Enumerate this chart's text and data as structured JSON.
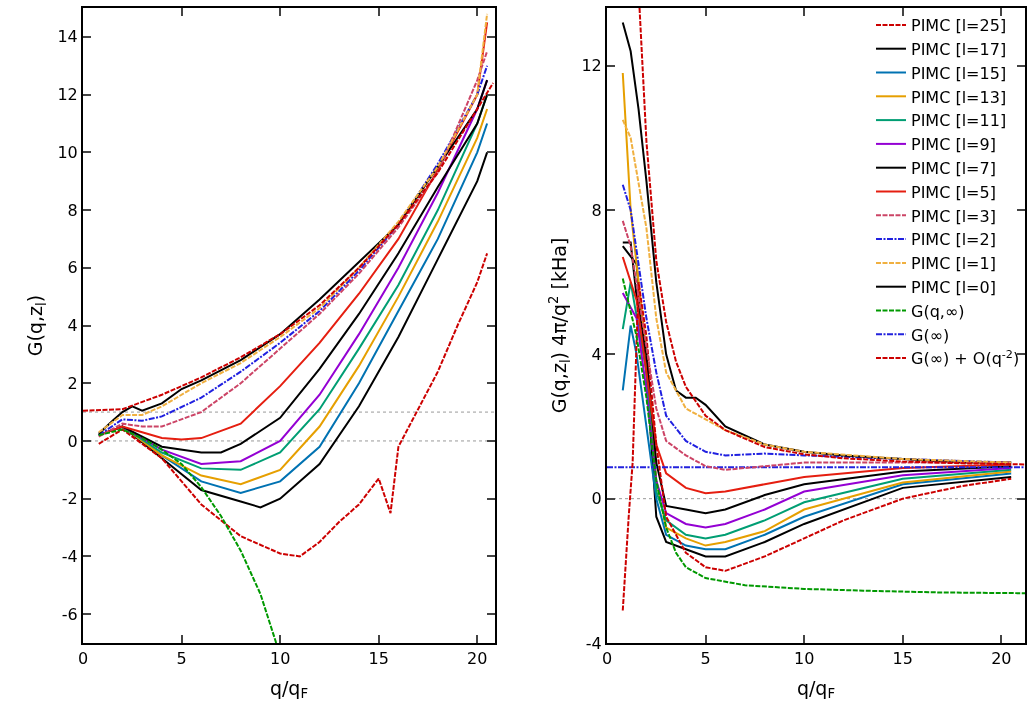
{
  "chart_data": [
    {
      "type": "line",
      "xlabel": "q/q$_{F}$",
      "ylabel": "G(q,z$_{l}$)",
      "xlim": [
        0,
        20.9
      ],
      "ylim": [
        -7,
        15
      ],
      "xticks": [
        0,
        5,
        10,
        15,
        20
      ],
      "yticks": [
        -6,
        -4,
        -2,
        0,
        2,
        4,
        6,
        8,
        10,
        12,
        14
      ],
      "grid": false,
      "legend": false,
      "ref_lines": [
        {
          "axis": "y",
          "value": 0,
          "color": "#999999",
          "line_style": "dotted"
        },
        {
          "axis": "y",
          "value": 1,
          "color": "#999999",
          "line_style": "dotted"
        }
      ],
      "series": [
        {
          "color": "#cc0000",
          "line_style": "dashed",
          "x": [
            0.8,
            2,
            4,
            6,
            8,
            10,
            11,
            12,
            13,
            14,
            15,
            15.6,
            16,
            17,
            18,
            19,
            20,
            20.5
          ],
          "values": [
            -0.1,
            0.4,
            -0.6,
            -2.2,
            -3.3,
            -3.9,
            -4.0,
            -3.5,
            -2.8,
            -2.2,
            -1.3,
            -2.5,
            -0.2,
            1.1,
            2.4,
            4.0,
            5.5,
            6.5
          ]
        },
        {
          "color": "#000000",
          "line_style": "solid",
          "x": [
            0.8,
            2,
            4,
            6,
            8,
            9,
            10,
            12,
            14,
            16,
            18,
            20,
            20.5
          ],
          "values": [
            0.2,
            0.5,
            -0.6,
            -1.7,
            -2.1,
            -2.3,
            -2.0,
            -0.8,
            1.2,
            3.6,
            6.3,
            9.0,
            10.0
          ]
        },
        {
          "color": "#0072b2",
          "line_style": "solid",
          "x": [
            0.8,
            2,
            4,
            6,
            8,
            10,
            12,
            14,
            16,
            18,
            20,
            20.5
          ],
          "values": [
            0.2,
            0.5,
            -0.5,
            -1.4,
            -1.8,
            -1.4,
            -0.2,
            2.0,
            4.5,
            7.0,
            10.0,
            11.0
          ]
        },
        {
          "color": "#e69f00",
          "line_style": "solid",
          "x": [
            0.8,
            2,
            4,
            6,
            8,
            10,
            12,
            14,
            16,
            18,
            20,
            20.5
          ],
          "values": [
            0.2,
            0.5,
            -0.5,
            -1.2,
            -1.5,
            -1.0,
            0.5,
            2.6,
            5.0,
            7.6,
            10.5,
            11.5
          ]
        },
        {
          "color": "#009e73",
          "line_style": "solid",
          "x": [
            0.8,
            2,
            4,
            6,
            8,
            10,
            12,
            14,
            16,
            18,
            20,
            20.5
          ],
          "values": [
            0.2,
            0.5,
            -0.4,
            -0.95,
            -1.0,
            -0.4,
            1.1,
            3.2,
            5.4,
            8.0,
            11.0,
            12.0
          ]
        },
        {
          "color": "#9400d3",
          "line_style": "solid",
          "x": [
            0.8,
            2,
            4,
            6,
            8,
            10,
            12,
            14,
            16,
            18,
            20,
            20.5
          ],
          "values": [
            0.2,
            0.5,
            -0.3,
            -0.8,
            -0.7,
            0.0,
            1.6,
            3.7,
            6.0,
            8.6,
            11.5,
            12.5
          ]
        },
        {
          "color": "#000000",
          "line_style": "solid",
          "x": [
            0.8,
            2,
            4,
            6,
            7,
            8,
            10,
            12,
            14,
            16,
            18,
            20,
            20.5
          ],
          "values": [
            0.2,
            0.5,
            -0.2,
            -0.4,
            -0.4,
            -0.1,
            0.8,
            2.5,
            4.4,
            6.5,
            8.8,
            11.0,
            12.0
          ]
        },
        {
          "color": "#e51e10",
          "line_style": "solid",
          "x": [
            0.8,
            2,
            3,
            4,
            5,
            6,
            8,
            10,
            12,
            14,
            16,
            18,
            20,
            20.5
          ],
          "values": [
            0.2,
            0.5,
            0.3,
            0.1,
            0.05,
            0.1,
            0.6,
            1.9,
            3.4,
            5.1,
            7.0,
            9.4,
            12.0,
            14.5
          ]
        },
        {
          "color": "#cc4466",
          "line_style": "dashed",
          "x": [
            0.8,
            2,
            3,
            4,
            6,
            8,
            10,
            12,
            14,
            16,
            18,
            20,
            20.5
          ],
          "values": [
            0.15,
            0.6,
            0.5,
            0.5,
            1.0,
            2.0,
            3.2,
            4.4,
            5.8,
            7.4,
            9.3,
            12.5,
            13.5
          ]
        },
        {
          "color": "#2020e0",
          "line_style": "dashdot",
          "x": [
            0.8,
            2,
            3,
            4,
            6,
            8,
            10,
            12,
            14,
            16,
            18,
            20,
            20.5
          ],
          "values": [
            0.2,
            0.75,
            0.7,
            0.85,
            1.5,
            2.4,
            3.4,
            4.5,
            5.9,
            7.5,
            9.6,
            12.0,
            13.0
          ]
        },
        {
          "color": "#f0b040",
          "line_style": "dashed",
          "x": [
            0.8,
            2,
            3,
            4,
            6,
            8,
            10,
            12,
            14,
            16,
            18,
            20,
            20.5
          ],
          "values": [
            0.3,
            0.9,
            0.9,
            1.2,
            2.0,
            2.7,
            3.6,
            4.6,
            6.0,
            7.6,
            9.5,
            12.0,
            14.8
          ]
        },
        {
          "color": "#000000",
          "line_style": "solid",
          "x": [
            0.8,
            1.5,
            2,
            2.5,
            3,
            4,
            5,
            6,
            8,
            10,
            12,
            14,
            16,
            18,
            20,
            20.5
          ],
          "values": [
            0.25,
            0.7,
            1.0,
            1.2,
            1.05,
            1.3,
            1.8,
            2.1,
            2.8,
            3.7,
            4.9,
            6.2,
            7.5,
            9.5,
            11.5,
            12.5
          ]
        },
        {
          "color": "#009900",
          "line_style": "dashed",
          "x": [
            0.8,
            2,
            3,
            4,
            5,
            6,
            7,
            8,
            9,
            9.8
          ],
          "values": [
            0.2,
            0.4,
            0.1,
            -0.3,
            -0.8,
            -1.6,
            -2.6,
            -3.8,
            -5.3,
            -7.0
          ]
        },
        {
          "color": "#cc0000",
          "line_style": "dashed",
          "x": [
            0,
            2,
            4,
            6,
            8,
            10,
            12,
            14,
            16,
            18,
            20,
            20.8
          ],
          "values": [
            1.05,
            1.1,
            1.6,
            2.2,
            2.9,
            3.7,
            4.7,
            6.0,
            7.5,
            9.3,
            11.5,
            12.4
          ]
        }
      ]
    },
    {
      "type": "line",
      "xlabel": "q/q$_{F}$",
      "ylabel": "G(q,z$_{l}$) 4π/q$^{2}$ [kHa]",
      "xlim": [
        0,
        21.2
      ],
      "ylim": [
        -4,
        13.6
      ],
      "xticks": [
        0,
        5,
        10,
        15,
        20
      ],
      "yticks": [
        -4,
        0,
        4,
        8,
        12
      ],
      "grid": false,
      "legend": "top right",
      "ref_lines": [
        {
          "axis": "y",
          "value": 0,
          "color": "#999999",
          "line_style": "dotted"
        }
      ],
      "series": [
        {
          "name": "PIMC [l=25]",
          "color": "#cc0000",
          "line_style": "dashed",
          "x": [
            0.8,
            1.1,
            1.3,
            1.6,
            2,
            2.5,
            3,
            4,
            5,
            6,
            8,
            10,
            12,
            15,
            18,
            20.5
          ],
          "values": [
            -3.1,
            -0.5,
            1.0,
            6.0,
            4.5,
            1.5,
            -0.5,
            -1.5,
            -1.9,
            -2.0,
            -1.6,
            -1.1,
            -0.6,
            0.0,
            0.35,
            0.55
          ]
        },
        {
          "name": "PIMC [l=17]",
          "color": "#000000",
          "line_style": "solid",
          "x": [
            0.8,
            1.5,
            2,
            2.5,
            3,
            4,
            5,
            6,
            8,
            10,
            15,
            20.5
          ],
          "values": [
            7.0,
            6.5,
            3.5,
            -0.5,
            -1.2,
            -1.4,
            -1.6,
            -1.6,
            -1.2,
            -0.7,
            0.3,
            0.6
          ]
        },
        {
          "name": "PIMC [l=15]",
          "color": "#0072b2",
          "line_style": "solid",
          "x": [
            0.8,
            1.2,
            1.5,
            2,
            2.5,
            3,
            4,
            5,
            6,
            8,
            10,
            15,
            20.5
          ],
          "values": [
            3.0,
            4.8,
            4.0,
            2.0,
            0,
            -1.0,
            -1.3,
            -1.4,
            -1.4,
            -1.0,
            -0.5,
            0.4,
            0.7
          ]
        },
        {
          "name": "PIMC [l=13]",
          "color": "#e69f00",
          "line_style": "solid",
          "x": [
            0.8,
            1.2,
            2,
            2.5,
            3,
            4,
            5,
            6,
            8,
            10,
            15,
            20.5
          ],
          "values": [
            11.8,
            8.0,
            4.0,
            0.5,
            -0.8,
            -1.1,
            -1.3,
            -1.2,
            -0.9,
            -0.3,
            0.45,
            0.75
          ]
        },
        {
          "name": "PIMC [l=11]",
          "color": "#009e73",
          "line_style": "solid",
          "x": [
            0.8,
            1.2,
            2,
            2.5,
            3,
            4,
            5,
            6,
            8,
            10,
            15,
            20.5
          ],
          "values": [
            4.7,
            6.0,
            3.5,
            0.2,
            -0.6,
            -1.0,
            -1.1,
            -1.0,
            -0.6,
            -0.1,
            0.55,
            0.8
          ]
        },
        {
          "name": "PIMC [l=9]",
          "color": "#9400d3",
          "line_style": "solid",
          "x": [
            0.8,
            1.5,
            2,
            2.5,
            3,
            4,
            5,
            6,
            8,
            10,
            15,
            20.5
          ],
          "values": [
            5.7,
            5.0,
            3.0,
            0.5,
            -0.4,
            -0.7,
            -0.8,
            -0.7,
            -0.3,
            0.2,
            0.65,
            0.85
          ]
        },
        {
          "name": "PIMC [l=7]",
          "color": "#000000",
          "line_style": "solid",
          "x": [
            0.8,
            1.2,
            1.5,
            2,
            2.5,
            3,
            4,
            5,
            6,
            8,
            10,
            15,
            20.5
          ],
          "values": [
            7.1,
            7.1,
            5.6,
            4.0,
            1.0,
            -0.2,
            -0.3,
            -0.4,
            -0.3,
            0.1,
            0.4,
            0.75,
            0.9
          ]
        },
        {
          "name": "PIMC [l=5]",
          "color": "#e51e10",
          "line_style": "solid",
          "x": [
            0.8,
            1.5,
            2,
            2.5,
            3,
            4,
            5,
            6,
            8,
            10,
            15,
            20.5
          ],
          "values": [
            6.7,
            5.5,
            3.5,
            1.5,
            0.7,
            0.3,
            0.15,
            0.2,
            0.4,
            0.6,
            0.85,
            0.95
          ]
        },
        {
          "name": "PIMC [l=3]",
          "color": "#cc4466",
          "line_style": "dashed",
          "x": [
            0.8,
            1.2,
            2,
            2.5,
            3,
            4,
            5,
            6,
            8,
            10,
            15,
            20.5
          ],
          "values": [
            7.7,
            7.0,
            4.2,
            2.5,
            1.6,
            1.2,
            0.9,
            0.8,
            0.9,
            1.0,
            1.0,
            1.0
          ]
        },
        {
          "name": "PIMC [l=2]",
          "color": "#2020e0",
          "line_style": "dashdot",
          "x": [
            0.8,
            1.2,
            2,
            2.5,
            3,
            4,
            5,
            6,
            8,
            10,
            15,
            20.5
          ],
          "values": [
            8.7,
            8.0,
            5.0,
            3.5,
            2.3,
            1.6,
            1.3,
            1.2,
            1.25,
            1.2,
            1.1,
            1.0
          ]
        },
        {
          "name": "PIMC [l=1]",
          "color": "#f0b040",
          "line_style": "dashed",
          "x": [
            0.8,
            1.2,
            2,
            2.5,
            3,
            4,
            5,
            6,
            8,
            10,
            15,
            20.5
          ],
          "values": [
            10.5,
            10.0,
            7.5,
            5.0,
            3.5,
            2.5,
            2.2,
            1.9,
            1.5,
            1.3,
            1.1,
            1.0
          ]
        },
        {
          "name": "PIMC [l=0]",
          "color": "#000000",
          "line_style": "solid",
          "x": [
            0.8,
            1.2,
            1.6,
            2,
            2.5,
            3,
            3.5,
            4,
            4.5,
            5,
            6,
            8,
            10,
            12,
            15,
            18,
            20.5
          ],
          "values": [
            13.2,
            12.4,
            10.8,
            8.8,
            6.0,
            4.0,
            3.0,
            2.8,
            2.8,
            2.6,
            2.0,
            1.5,
            1.3,
            1.2,
            1.1,
            1.0,
            1.0
          ]
        },
        {
          "name": "G(q,∞)",
          "color": "#009900",
          "line_style": "dashed",
          "x": [
            0.8,
            1.5,
            2,
            2.5,
            3,
            3.5,
            4,
            5,
            7,
            10,
            13,
            17,
            21.2
          ],
          "values": [
            6.1,
            4.5,
            2.8,
            0.5,
            -0.8,
            -1.5,
            -1.9,
            -2.2,
            -2.4,
            -2.5,
            -2.55,
            -2.6,
            -2.62
          ]
        },
        {
          "name": "G(∞)",
          "color": "#2222dd",
          "line_style": "dashdot",
          "x": [
            0,
            21.2
          ],
          "values": [
            0.87,
            0.87
          ]
        },
        {
          "name": "G(∞) + O(q$^{-2}$)",
          "color": "#cc0000",
          "line_style": "dashed",
          "x": [
            1.65,
            2,
            2.5,
            3,
            3.5,
            4,
            5,
            6,
            8,
            10,
            12,
            15,
            18,
            21.2
          ],
          "values": [
            13.6,
            9.9,
            6.6,
            4.9,
            3.8,
            3.1,
            2.3,
            1.9,
            1.43,
            1.23,
            1.12,
            1.03,
            0.98,
            0.95
          ]
        }
      ]
    }
  ]
}
